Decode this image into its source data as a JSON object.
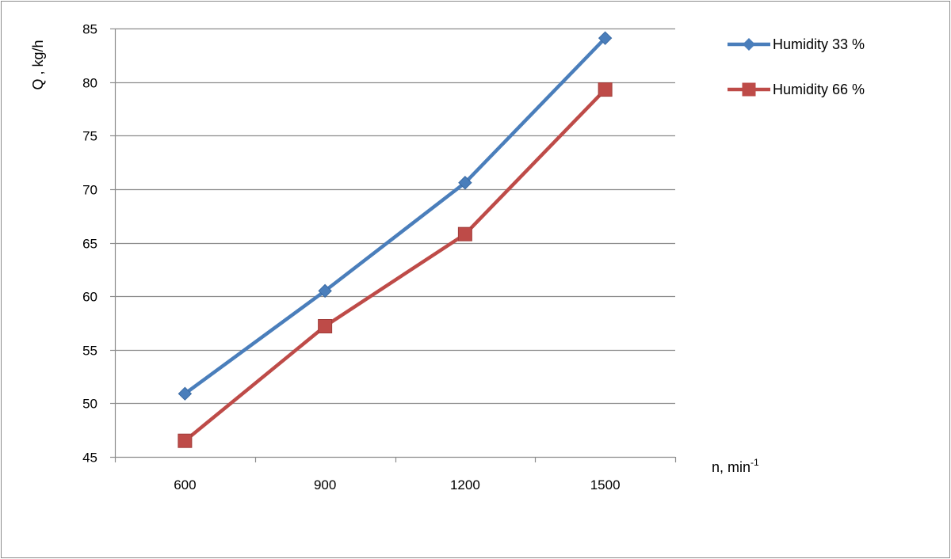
{
  "chart_data": {
    "type": "line",
    "categories": [
      "600",
      "900",
      "1200",
      "1500"
    ],
    "x": [
      600,
      900,
      1200,
      1500
    ],
    "series": [
      {
        "name": "Humidity 33 %",
        "values": [
          50.9,
          60.5,
          70.6,
          84.1
        ],
        "color": "#4a7ebb",
        "marker": "diamond"
      },
      {
        "name": "Humidity 66 %",
        "values": [
          46.5,
          57.2,
          65.8,
          79.3
        ],
        "color": "#be4b48",
        "marker": "square"
      }
    ],
    "title": "",
    "xlabel": "n,  min",
    "xlabel_sup": "-1",
    "ylabel": "Q ,  kg/h",
    "ylim": [
      45,
      85
    ],
    "yticks": [
      "45",
      "50",
      "55",
      "60",
      "65",
      "70",
      "75",
      "80",
      "85"
    ],
    "grid": "horizontal",
    "legend_position": "top-right"
  }
}
